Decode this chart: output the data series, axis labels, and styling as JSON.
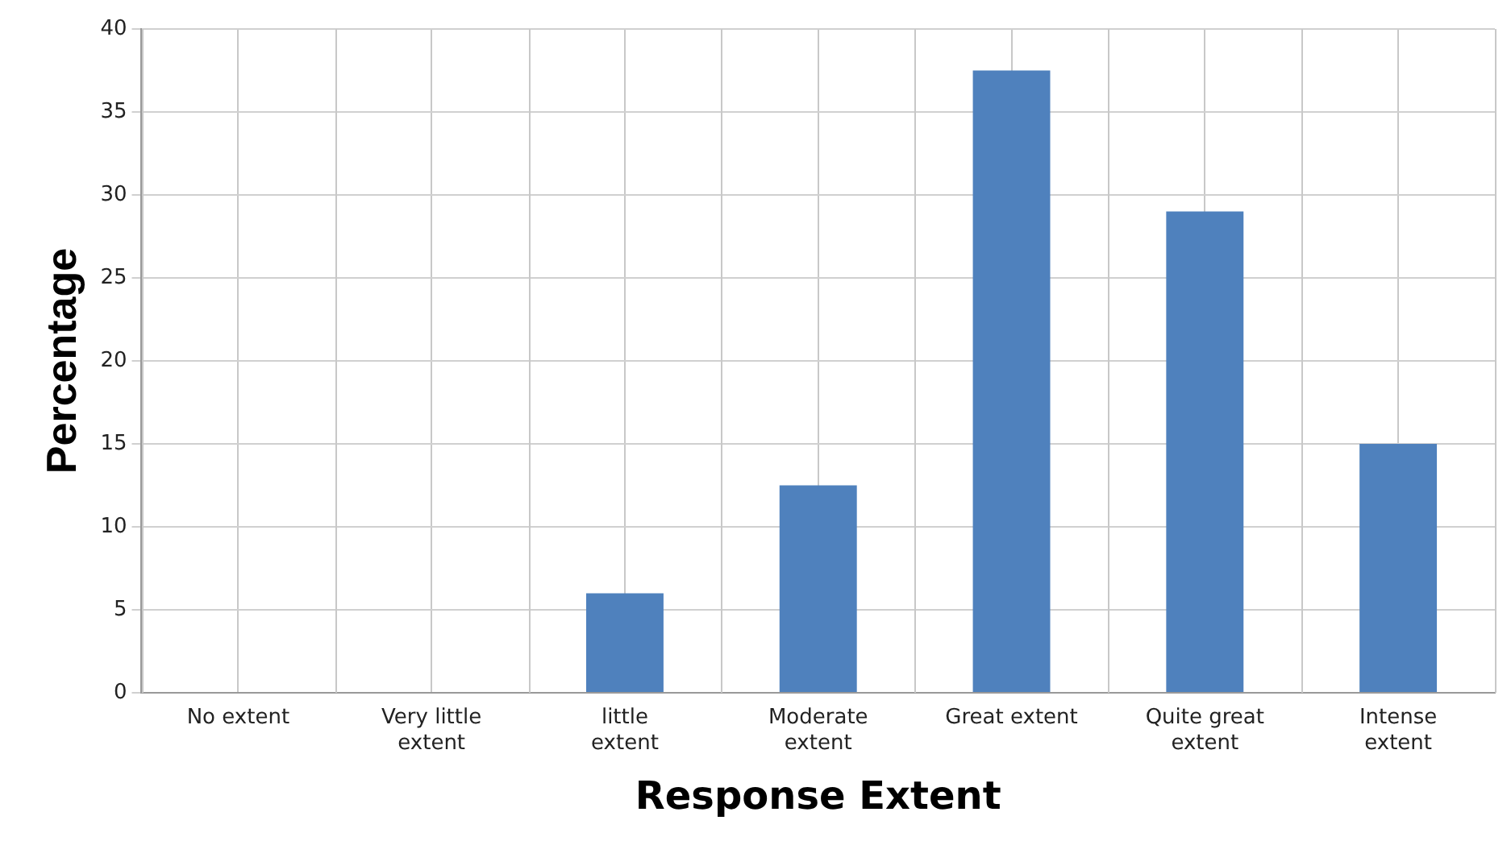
{
  "chart_data": {
    "type": "bar",
    "xlabel": "Response Extent",
    "ylabel": "Percentage",
    "categories": [
      "No extent",
      "Very little extent",
      "little extent",
      "Moderate extent",
      "Great extent",
      "Quite great extent",
      "Intense extent"
    ],
    "values": [
      0,
      0,
      6,
      12.5,
      37.5,
      29,
      15
    ],
    "color": "#4f81bd",
    "ylim": [
      0,
      40
    ],
    "yticks": [
      0,
      5,
      10,
      15,
      20,
      25,
      30,
      35,
      40
    ],
    "grid": true
  }
}
